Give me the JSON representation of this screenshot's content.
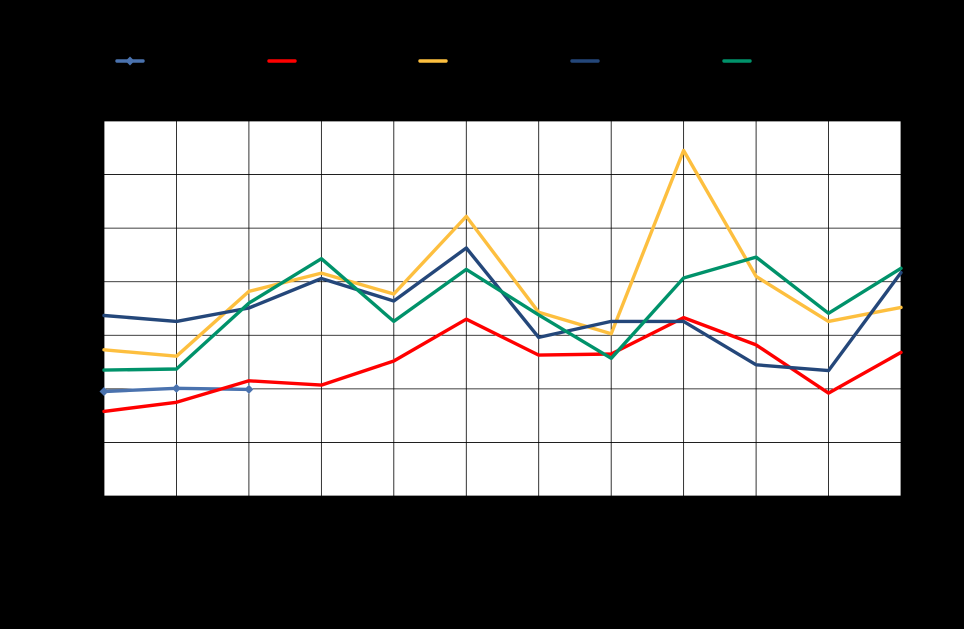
{
  "chart_data": {
    "type": "line",
    "title": "",
    "xlabel": "",
    "ylabel": "",
    "x_count": 12,
    "grid": true,
    "legend_position": "top",
    "plot_background": "#FFFFFF",
    "page_background": "#000000",
    "series": [
      {
        "color": "#4A72AE",
        "marker": "diamond",
        "values": [
          1.95,
          2.01,
          1.99,
          null,
          null,
          null,
          null,
          null,
          null,
          null,
          null,
          null
        ]
      },
      {
        "color": "#FF0000",
        "marker": "none",
        "values": [
          1.58,
          1.75,
          2.15,
          2.07,
          2.52,
          3.3,
          2.63,
          2.65,
          3.33,
          2.82,
          1.92,
          2.68
        ]
      },
      {
        "color": "#FDBF3F",
        "marker": "none",
        "values": [
          2.73,
          2.61,
          3.82,
          4.16,
          3.77,
          5.22,
          3.43,
          3.03,
          6.45,
          4.1,
          3.26,
          3.52
        ]
      },
      {
        "color": "#24477A",
        "marker": "none",
        "values": [
          3.37,
          3.26,
          3.51,
          4.06,
          3.64,
          4.63,
          2.96,
          3.26,
          3.26,
          2.45,
          2.34,
          4.17
        ]
      },
      {
        "color": "#00926A",
        "marker": "none",
        "values": [
          2.35,
          2.37,
          3.6,
          4.43,
          3.26,
          4.23,
          3.38,
          2.57,
          4.07,
          4.46,
          3.41,
          4.25
        ]
      }
    ],
    "ylim": [
      0,
      7
    ]
  }
}
